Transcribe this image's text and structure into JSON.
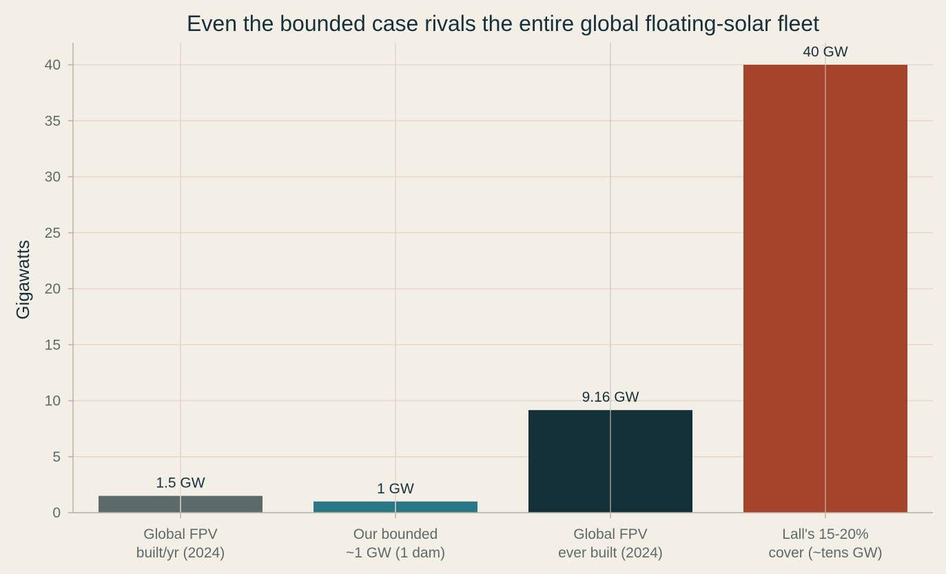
{
  "chart_data": {
    "type": "bar",
    "title": "Even the bounded case rivals the entire global floating-solar fleet",
    "xlabel": "",
    "ylabel": "Gigawatts",
    "ylim": [
      0,
      42
    ],
    "yticks": [
      0,
      5,
      10,
      15,
      20,
      25,
      30,
      35,
      40
    ],
    "grid": true,
    "categories": [
      [
        "Global FPV",
        "built/yr (2024)"
      ],
      [
        "Our bounded",
        "~1 GW (1 dam)"
      ],
      [
        "Global FPV",
        "ever built (2024)"
      ],
      [
        "Lall's 15-20%",
        "cover (~tens GW)"
      ]
    ],
    "values": [
      1.5,
      1,
      9.16,
      40
    ],
    "data_labels": [
      "1.5 GW",
      "1 GW",
      "9.16 GW",
      "40 GW"
    ],
    "colors": [
      "#5c6b69",
      "#2a7886",
      "#132f38",
      "#a6432b"
    ]
  }
}
